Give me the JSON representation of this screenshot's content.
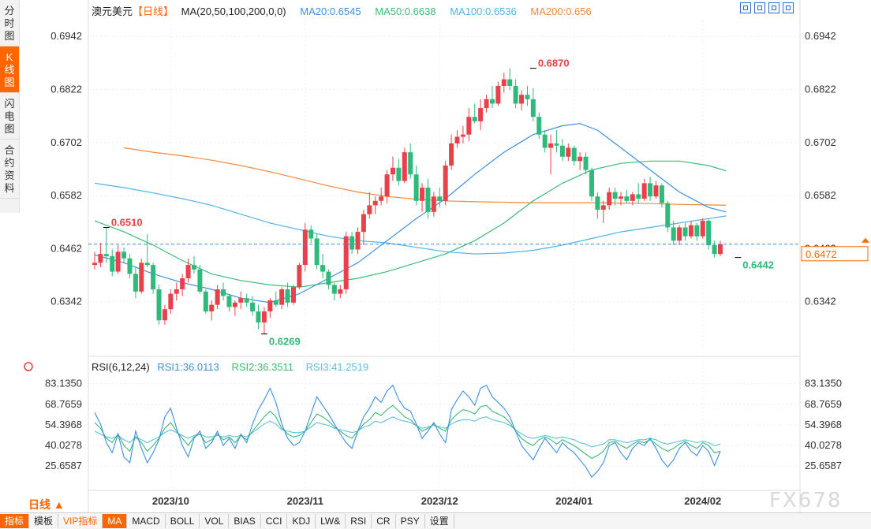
{
  "sidebar": {
    "tabs": [
      {
        "label": [
          "分",
          "时",
          "图"
        ],
        "active": false
      },
      {
        "label": [
          "K",
          "线",
          "图"
        ],
        "active": true
      },
      {
        "label": [
          "闪",
          "电",
          "图"
        ],
        "active": false
      },
      {
        "label": [
          "合",
          "约",
          "资",
          "料"
        ],
        "active": false
      }
    ]
  },
  "header": {
    "symbol": "澳元美元",
    "period": "【日线】",
    "ma_params": "MA(20,50,100,200,0,0)",
    "ma20": "MA20:0.6545",
    "ma50": "MA50:0.6638",
    "ma100": "MA100:0.6536",
    "ma200": "MA200:0.656"
  },
  "rsi_header": {
    "params": "RSI(6,12,24)",
    "rsi1": "RSI1:36.0113",
    "rsi2": "RSI2:36.3511",
    "rsi3": "RSI3:41.2519"
  },
  "colors": {
    "up": "#e8414a",
    "down": "#2eba7a",
    "ma20": "#3c8fe0",
    "ma50": "#3dbb78",
    "ma100": "#4fb4e8",
    "ma200": "#f5883a",
    "rsi1": "#3a8fe0",
    "rsi2": "#3cb872",
    "rsi3": "#5cc0e0",
    "price_line": "#3a8fe0",
    "accent": "#ff6600"
  },
  "chart_data": {
    "type": "candlestick",
    "y_ticks": [
      "0.6942",
      "0.6822",
      "0.6702",
      "0.6582",
      "0.6462",
      "0.6342"
    ],
    "ylim": [
      0.6222,
      0.6978
    ],
    "x_labels": [
      "2023/10",
      "2023/11",
      "2023/12",
      "2024/01",
      "2024/02"
    ],
    "x_label_index": [
      13,
      36,
      59,
      82,
      104
    ],
    "current_price": "0.6472",
    "current_price_value": 0.6472,
    "annotations": [
      {
        "text": "0.6870",
        "index": 75,
        "value": 0.687,
        "side": "high"
      },
      {
        "text": "0.6510",
        "index": 2,
        "value": 0.651,
        "side": "high"
      },
      {
        "text": "0.6269",
        "index": 29,
        "value": 0.6269,
        "side": "low"
      },
      {
        "text": "0.6442",
        "index": 110,
        "value": 0.6442,
        "side": "low"
      }
    ],
    "candles": [
      [
        0.6425,
        0.6455,
        0.6415,
        0.643
      ],
      [
        0.643,
        0.6475,
        0.642,
        0.645
      ],
      [
        0.645,
        0.651,
        0.643,
        0.6445
      ],
      [
        0.6445,
        0.646,
        0.64,
        0.641
      ],
      [
        0.641,
        0.647,
        0.6405,
        0.6455
      ],
      [
        0.6455,
        0.6465,
        0.643,
        0.644
      ],
      [
        0.644,
        0.645,
        0.6395,
        0.6405
      ],
      [
        0.6405,
        0.642,
        0.635,
        0.6365
      ],
      [
        0.6365,
        0.644,
        0.636,
        0.643
      ],
      [
        0.643,
        0.6495,
        0.642,
        0.6425
      ],
      [
        0.6425,
        0.643,
        0.636,
        0.637
      ],
      [
        0.637,
        0.638,
        0.629,
        0.63
      ],
      [
        0.63,
        0.6335,
        0.629,
        0.6325
      ],
      [
        0.6325,
        0.637,
        0.6315,
        0.636
      ],
      [
        0.636,
        0.6385,
        0.6345,
        0.637
      ],
      [
        0.637,
        0.6405,
        0.6355,
        0.6395
      ],
      [
        0.6395,
        0.644,
        0.6385,
        0.6425
      ],
      [
        0.6425,
        0.6445,
        0.6405,
        0.6415
      ],
      [
        0.6415,
        0.6425,
        0.636,
        0.6365
      ],
      [
        0.6365,
        0.637,
        0.6315,
        0.632
      ],
      [
        0.632,
        0.6345,
        0.63,
        0.6335
      ],
      [
        0.6335,
        0.638,
        0.6325,
        0.637
      ],
      [
        0.637,
        0.6385,
        0.6345,
        0.6355
      ],
      [
        0.6355,
        0.636,
        0.632,
        0.633
      ],
      [
        0.633,
        0.6345,
        0.631,
        0.634
      ],
      [
        0.634,
        0.6365,
        0.6325,
        0.635
      ],
      [
        0.635,
        0.636,
        0.633,
        0.634
      ],
      [
        0.634,
        0.6355,
        0.631,
        0.632
      ],
      [
        0.632,
        0.6335,
        0.628,
        0.6295
      ],
      [
        0.6295,
        0.633,
        0.6269,
        0.632
      ],
      [
        0.632,
        0.635,
        0.6305,
        0.6345
      ],
      [
        0.6345,
        0.6365,
        0.633,
        0.6335
      ],
      [
        0.6335,
        0.6375,
        0.6325,
        0.637
      ],
      [
        0.637,
        0.6385,
        0.633,
        0.634
      ],
      [
        0.634,
        0.638,
        0.6335,
        0.6375
      ],
      [
        0.6375,
        0.643,
        0.637,
        0.6425
      ],
      [
        0.6425,
        0.652,
        0.641,
        0.6505
      ],
      [
        0.6505,
        0.6515,
        0.6475,
        0.6485
      ],
      [
        0.6485,
        0.6495,
        0.6415,
        0.6425
      ],
      [
        0.6425,
        0.645,
        0.6395,
        0.641
      ],
      [
        0.641,
        0.6415,
        0.637,
        0.638
      ],
      [
        0.638,
        0.6385,
        0.6345,
        0.636
      ],
      [
        0.636,
        0.638,
        0.635,
        0.637
      ],
      [
        0.637,
        0.65,
        0.636,
        0.649
      ],
      [
        0.649,
        0.65,
        0.645,
        0.646
      ],
      [
        0.646,
        0.651,
        0.645,
        0.65
      ],
      [
        0.65,
        0.655,
        0.647,
        0.654
      ],
      [
        0.654,
        0.659,
        0.653,
        0.656
      ],
      [
        0.656,
        0.658,
        0.654,
        0.657
      ],
      [
        0.657,
        0.66,
        0.656,
        0.658
      ],
      [
        0.658,
        0.664,
        0.6565,
        0.663
      ],
      [
        0.663,
        0.667,
        0.6615,
        0.6645
      ],
      [
        0.6645,
        0.6665,
        0.6605,
        0.6615
      ],
      [
        0.6615,
        0.669,
        0.661,
        0.668
      ],
      [
        0.668,
        0.67,
        0.662,
        0.663
      ],
      [
        0.663,
        0.665,
        0.656,
        0.657
      ],
      [
        0.657,
        0.661,
        0.6545,
        0.66
      ],
      [
        0.66,
        0.662,
        0.653,
        0.6545
      ],
      [
        0.6545,
        0.659,
        0.6535,
        0.658
      ],
      [
        0.658,
        0.66,
        0.6555,
        0.657
      ],
      [
        0.657,
        0.666,
        0.656,
        0.665
      ],
      [
        0.665,
        0.672,
        0.664,
        0.67
      ],
      [
        0.67,
        0.673,
        0.669,
        0.6715
      ],
      [
        0.6715,
        0.674,
        0.67,
        0.672
      ],
      [
        0.672,
        0.678,
        0.6705,
        0.676
      ],
      [
        0.676,
        0.679,
        0.6745,
        0.675
      ],
      [
        0.675,
        0.68,
        0.673,
        0.678
      ],
      [
        0.678,
        0.681,
        0.677,
        0.68
      ],
      [
        0.68,
        0.683,
        0.678,
        0.679
      ],
      [
        0.679,
        0.684,
        0.6785,
        0.683
      ],
      [
        0.683,
        0.686,
        0.6815,
        0.6845
      ],
      [
        0.6845,
        0.687,
        0.682,
        0.683
      ],
      [
        0.683,
        0.6845,
        0.678,
        0.679
      ],
      [
        0.679,
        0.682,
        0.6775,
        0.681
      ],
      [
        0.681,
        0.683,
        0.6785,
        0.68
      ],
      [
        0.68,
        0.6825,
        0.675,
        0.676
      ],
      [
        0.676,
        0.677,
        0.671,
        0.672
      ],
      [
        0.672,
        0.673,
        0.668,
        0.669
      ],
      [
        0.669,
        0.672,
        0.663,
        0.67
      ],
      [
        0.67,
        0.673,
        0.668,
        0.6695
      ],
      [
        0.6695,
        0.671,
        0.666,
        0.667
      ],
      [
        0.667,
        0.67,
        0.666,
        0.669
      ],
      [
        0.669,
        0.6695,
        0.665,
        0.666
      ],
      [
        0.666,
        0.668,
        0.664,
        0.667
      ],
      [
        0.667,
        0.668,
        0.663,
        0.664
      ],
      [
        0.664,
        0.6645,
        0.657,
        0.658
      ],
      [
        0.658,
        0.659,
        0.653,
        0.655
      ],
      [
        0.655,
        0.657,
        0.652,
        0.656
      ],
      [
        0.656,
        0.66,
        0.655,
        0.659
      ],
      [
        0.659,
        0.66,
        0.656,
        0.6575
      ],
      [
        0.6575,
        0.659,
        0.656,
        0.658
      ],
      [
        0.658,
        0.6595,
        0.6565,
        0.657
      ],
      [
        0.657,
        0.659,
        0.656,
        0.6585
      ],
      [
        0.6585,
        0.661,
        0.6565,
        0.6575
      ],
      [
        0.6575,
        0.662,
        0.657,
        0.661
      ],
      [
        0.661,
        0.6625,
        0.657,
        0.658
      ],
      [
        0.658,
        0.6615,
        0.6575,
        0.6605
      ],
      [
        0.6605,
        0.661,
        0.6555,
        0.6565
      ],
      [
        0.6565,
        0.657,
        0.65,
        0.651
      ],
      [
        0.651,
        0.6525,
        0.647,
        0.648
      ],
      [
        0.648,
        0.6515,
        0.647,
        0.651
      ],
      [
        0.651,
        0.652,
        0.648,
        0.649
      ],
      [
        0.649,
        0.6525,
        0.6485,
        0.6515
      ],
      [
        0.6515,
        0.652,
        0.648,
        0.649
      ],
      [
        0.649,
        0.653,
        0.6485,
        0.6525
      ],
      [
        0.6525,
        0.653,
        0.646,
        0.647
      ],
      [
        0.647,
        0.648,
        0.6442,
        0.645
      ],
      [
        0.645,
        0.648,
        0.6445,
        0.6472
      ]
    ],
    "ma20": [
      [
        0,
        0.6448
      ],
      [
        5,
        0.643
      ],
      [
        10,
        0.6405
      ],
      [
        15,
        0.6385
      ],
      [
        20,
        0.637
      ],
      [
        25,
        0.635
      ],
      [
        30,
        0.634
      ],
      [
        35,
        0.636
      ],
      [
        40,
        0.6395
      ],
      [
        45,
        0.643
      ],
      [
        50,
        0.648
      ],
      [
        55,
        0.653
      ],
      [
        60,
        0.6575
      ],
      [
        65,
        0.663
      ],
      [
        70,
        0.668
      ],
      [
        75,
        0.672
      ],
      [
        80,
        0.674
      ],
      [
        83,
        0.6745
      ],
      [
        86,
        0.673
      ],
      [
        90,
        0.669
      ],
      [
        95,
        0.664
      ],
      [
        100,
        0.659
      ],
      [
        105,
        0.6555
      ],
      [
        108,
        0.6545
      ]
    ],
    "ma50": [
      [
        0,
        0.6525
      ],
      [
        5,
        0.65
      ],
      [
        10,
        0.647
      ],
      [
        15,
        0.6435
      ],
      [
        20,
        0.6405
      ],
      [
        25,
        0.639
      ],
      [
        30,
        0.638
      ],
      [
        35,
        0.6375
      ],
      [
        40,
        0.6385
      ],
      [
        45,
        0.6395
      ],
      [
        50,
        0.641
      ],
      [
        55,
        0.643
      ],
      [
        60,
        0.645
      ],
      [
        65,
        0.648
      ],
      [
        70,
        0.652
      ],
      [
        75,
        0.657
      ],
      [
        80,
        0.661
      ],
      [
        85,
        0.664
      ],
      [
        90,
        0.6655
      ],
      [
        95,
        0.666
      ],
      [
        100,
        0.666
      ],
      [
        105,
        0.665
      ],
      [
        108,
        0.6638
      ]
    ],
    "ma100": [
      [
        0,
        0.661
      ],
      [
        5,
        0.66
      ],
      [
        10,
        0.6588
      ],
      [
        15,
        0.6575
      ],
      [
        20,
        0.656
      ],
      [
        25,
        0.654
      ],
      [
        30,
        0.652
      ],
      [
        35,
        0.6505
      ],
      [
        40,
        0.649
      ],
      [
        45,
        0.648
      ],
      [
        50,
        0.6475
      ],
      [
        55,
        0.6465
      ],
      [
        60,
        0.6455
      ],
      [
        65,
        0.645
      ],
      [
        70,
        0.6452
      ],
      [
        75,
        0.6458
      ],
      [
        80,
        0.647
      ],
      [
        85,
        0.6485
      ],
      [
        90,
        0.65
      ],
      [
        95,
        0.651
      ],
      [
        100,
        0.652
      ],
      [
        105,
        0.653
      ],
      [
        108,
        0.6536
      ]
    ],
    "ma200": [
      [
        5,
        0.669
      ],
      [
        10,
        0.668
      ],
      [
        15,
        0.6672
      ],
      [
        20,
        0.6662
      ],
      [
        25,
        0.665
      ],
      [
        30,
        0.6636
      ],
      [
        35,
        0.662
      ],
      [
        40,
        0.6604
      ],
      [
        45,
        0.659
      ],
      [
        50,
        0.658
      ],
      [
        55,
        0.6574
      ],
      [
        60,
        0.657
      ],
      [
        65,
        0.6568
      ],
      [
        70,
        0.6567
      ],
      [
        75,
        0.6566
      ],
      [
        80,
        0.6566
      ],
      [
        85,
        0.6566
      ],
      [
        90,
        0.6565
      ],
      [
        95,
        0.6564
      ],
      [
        100,
        0.6562
      ],
      [
        105,
        0.6561
      ],
      [
        108,
        0.656
      ]
    ],
    "rsi": {
      "y_ticks": [
        "83.1350",
        "68.7659",
        "54.3968",
        "40.0278",
        "25.6587"
      ],
      "ylim": [
        14.2,
        86.8
      ],
      "rsi1": [
        63,
        55,
        42,
        35,
        48,
        32,
        28,
        50,
        38,
        28,
        35,
        44,
        60,
        66,
        52,
        40,
        32,
        45,
        50,
        38,
        42,
        50,
        40,
        45,
        38,
        48,
        42,
        55,
        65,
        72,
        80,
        70,
        55,
        45,
        40,
        42,
        50,
        62,
        74,
        68,
        62,
        55,
        48,
        42,
        38,
        50,
        60,
        66,
        74,
        70,
        78,
        82,
        72,
        66,
        64,
        55,
        45,
        50,
        56,
        48,
        42,
        65,
        72,
        78,
        74,
        68,
        80,
        82,
        74,
        70,
        66,
        60,
        50,
        40,
        35,
        30,
        38,
        45,
        40,
        35,
        42,
        38,
        35,
        30,
        25,
        18,
        22,
        28,
        40,
        42,
        35,
        30,
        38,
        42,
        40,
        45,
        38,
        30,
        25,
        30,
        38,
        42,
        36,
        33,
        40,
        36,
        26,
        36
      ],
      "rsi2": [
        56,
        52,
        45,
        42,
        48,
        40,
        36,
        46,
        42,
        36,
        40,
        45,
        52,
        56,
        50,
        45,
        40,
        46,
        48,
        42,
        44,
        48,
        44,
        46,
        42,
        47,
        44,
        50,
        55,
        60,
        64,
        60,
        52,
        48,
        46,
        47,
        50,
        56,
        62,
        60,
        57,
        53,
        50,
        47,
        45,
        50,
        55,
        58,
        63,
        61,
        65,
        68,
        64,
        60,
        58,
        54,
        50,
        52,
        55,
        52,
        50,
        58,
        62,
        65,
        64,
        62,
        67,
        68,
        64,
        62,
        60,
        56,
        50,
        45,
        42,
        40,
        44,
        46,
        44,
        41,
        44,
        42,
        40,
        37,
        34,
        31,
        33,
        36,
        42,
        43,
        40,
        38,
        41,
        43,
        42,
        44,
        41,
        38,
        36,
        38,
        41,
        43,
        40,
        38,
        42,
        40,
        35,
        36
      ],
      "rsi3": [
        50,
        48,
        46,
        45,
        47,
        44,
        42,
        46,
        44,
        42,
        44,
        46,
        49,
        51,
        49,
        47,
        45,
        47,
        48,
        46,
        46,
        47,
        46,
        47,
        46,
        47,
        46,
        49,
        52,
        55,
        57,
        55,
        51,
        50,
        49,
        49,
        50,
        53,
        56,
        55,
        54,
        52,
        51,
        50,
        49,
        50,
        53,
        54,
        57,
        56,
        58,
        60,
        58,
        57,
        56,
        54,
        52,
        53,
        54,
        53,
        52,
        55,
        57,
        58,
        58,
        57,
        59,
        60,
        58,
        57,
        56,
        54,
        51,
        48,
        46,
        45,
        46,
        47,
        46,
        45,
        46,
        45,
        44,
        42,
        41,
        39,
        40,
        41,
        44,
        44,
        43,
        42,
        43,
        44,
        44,
        45,
        44,
        42,
        41,
        42,
        43,
        44,
        43,
        42,
        43,
        42,
        40,
        41
      ]
    }
  },
  "period_button": "日线 ▲",
  "bottom_bar": [
    "指标",
    "模板",
    "VIP指标",
    "MA",
    "MACD",
    "BOLL",
    "VOL",
    "BIAS",
    "CCI",
    "KDJ",
    "LW&",
    "RSI",
    "CR",
    "PSY",
    "设置"
  ],
  "watermark": "FX678"
}
